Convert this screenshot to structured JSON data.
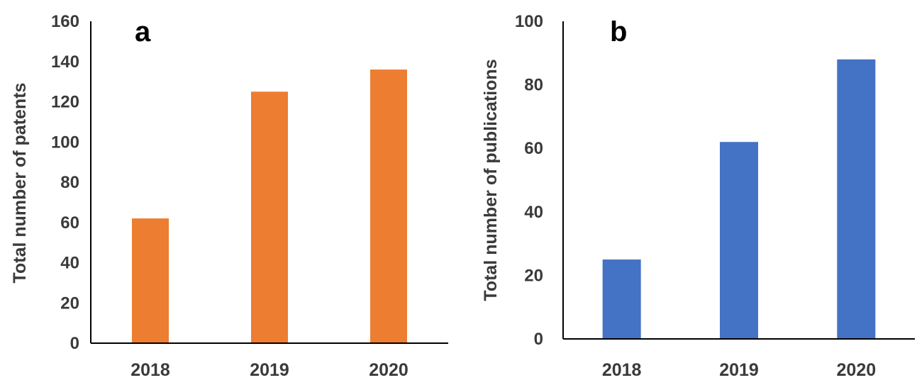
{
  "chart_data": [
    {
      "type": "bar",
      "panel_label": "a",
      "categories": [
        "2018",
        "2019",
        "2020"
      ],
      "values": [
        62,
        125,
        136
      ],
      "ylabel": "Total number of patents",
      "xlabel": "",
      "ylim": [
        0,
        160
      ],
      "yticks": [
        0,
        20,
        40,
        60,
        80,
        100,
        120,
        140,
        160
      ],
      "color": "#ED7D31",
      "grid": false,
      "legend": "none"
    },
    {
      "type": "bar",
      "panel_label": "b",
      "categories": [
        "2018",
        "2019",
        "2020"
      ],
      "values": [
        25,
        62,
        88
      ],
      "ylabel": "Total number of publications",
      "xlabel": "",
      "ylim": [
        0,
        100
      ],
      "yticks": [
        0,
        20,
        40,
        60,
        80,
        100
      ],
      "color": "#4472C4",
      "grid": false,
      "legend": "none"
    }
  ]
}
